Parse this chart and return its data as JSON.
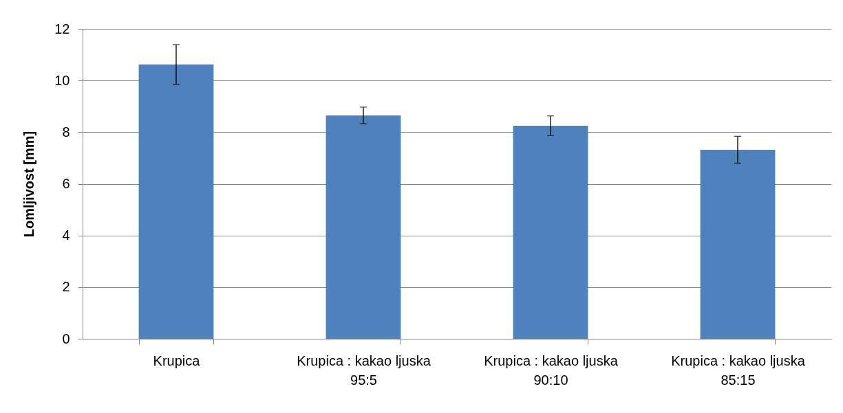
{
  "chart_data": {
    "type": "bar",
    "ylabel": "Lomljivost [mm]",
    "categories": [
      "Krupica",
      "Krupica : kakao ljuska 95:5",
      "Krupica : kakao ljuska 90:10",
      "Krupica : kakao ljuska 85:15"
    ],
    "values": [
      10.62,
      8.65,
      8.25,
      7.32
    ],
    "errors": [
      0.77,
      0.32,
      0.38,
      0.52
    ],
    "color": "#4f81bd",
    "ylim": [
      0,
      12
    ],
    "yticks": [
      0,
      2,
      4,
      6,
      8,
      10,
      12
    ],
    "grid": "y"
  }
}
